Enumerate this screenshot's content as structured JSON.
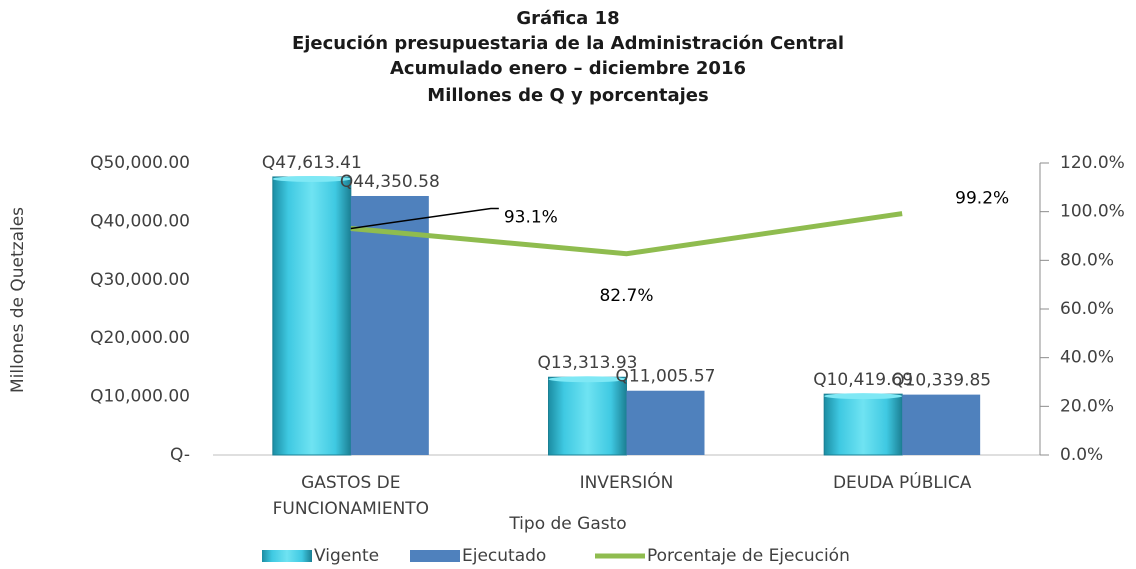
{
  "chart_data": {
    "type": "bar",
    "title": [
      "Gráfica 18",
      "Ejecución presupuestaria de la Administración Central",
      "Acumulado enero – diciembre 2016",
      "Millones de Q y porcentajes"
    ],
    "xlabel": "Tipo de Gasto",
    "ylabel": "Millones de Quetzales",
    "categories": [
      "GASTOS DE FUNCIONAMIENTO",
      "INVERSIÓN",
      "DEUDA PÚBLICA"
    ],
    "series": [
      {
        "name": "Vigente",
        "color": "#3fc9e2",
        "values": [
          47613.41,
          13313.93,
          10419.69
        ],
        "value_labels": [
          "Q47,613.41",
          "Q13,313.93",
          "Q10,419.69"
        ]
      },
      {
        "name": "Ejecutado",
        "color": "#4f81bd",
        "values": [
          44350.58,
          11005.57,
          10339.85
        ],
        "value_labels": [
          "Q44,350.58",
          "Q11,005.57",
          "Q10,339.85"
        ]
      },
      {
        "name": "Porcentaje de Ejecución",
        "color": "#8fbc4f",
        "type": "line",
        "axis": "y2",
        "values": [
          93.1,
          82.7,
          99.2
        ],
        "value_labels": [
          "93.1%",
          "82.7%",
          "99.2%"
        ]
      }
    ],
    "ylim": [
      0,
      50000
    ],
    "yticks": [
      {
        "value": 0,
        "label": "Q-"
      },
      {
        "value": 10000,
        "label": "Q10,000.00"
      },
      {
        "value": 20000,
        "label": "Q20,000.00"
      },
      {
        "value": 30000,
        "label": "Q30,000.00"
      },
      {
        "value": 40000,
        "label": "Q40,000.00"
      },
      {
        "value": 50000,
        "label": "Q50,000.00"
      }
    ],
    "y2lim": [
      0,
      120
    ],
    "y2ticks": [
      {
        "value": 0,
        "label": "0.0%"
      },
      {
        "value": 20,
        "label": "20.0%"
      },
      {
        "value": 40,
        "label": "40.0%"
      },
      {
        "value": 60,
        "label": "60.0%"
      },
      {
        "value": 80,
        "label": "80.0%"
      },
      {
        "value": 100,
        "label": "100.0%"
      },
      {
        "value": 120,
        "label": "120.0%"
      }
    ],
    "legend": "bottom"
  }
}
